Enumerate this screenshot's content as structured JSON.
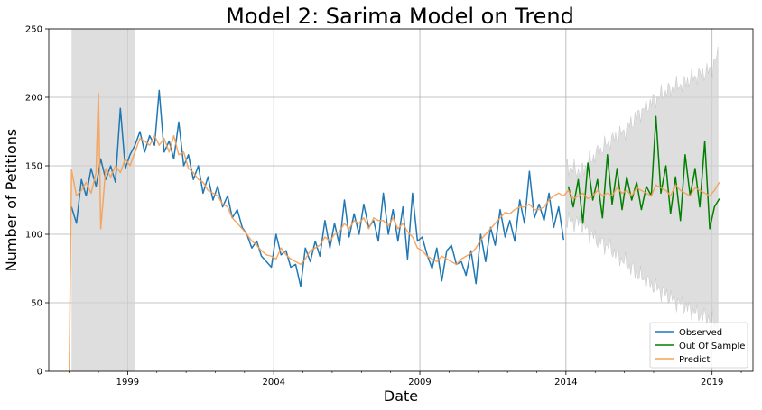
{
  "chart_data": {
    "type": "line",
    "title": "Model 2: Sarima Model on Trend",
    "xlabel": "Date",
    "ylabel": "Number of Petitions",
    "xlim": [
      1996.3,
      2020.4
    ],
    "ylim": [
      0,
      250
    ],
    "x_ticks": [
      1999,
      2004,
      2009,
      2014,
      2019
    ],
    "x_tick_labels": [
      "1999",
      "2004",
      "2009",
      "2014",
      "2019"
    ],
    "y_ticks": [
      0,
      50,
      100,
      150,
      200,
      250
    ],
    "y_tick_labels": [
      "0",
      "50",
      "100",
      "150",
      "200",
      "250"
    ],
    "grid": true,
    "legend_position": "lower-right",
    "colors": {
      "observed": "#1f77b4",
      "out_of_sample": "#008000",
      "predict": "#f5a055",
      "band": "#d3d3d3",
      "grid": "#b0b0b0"
    },
    "legend": [
      "Observed",
      "Out Of Sample",
      "Predict"
    ],
    "early_ci_band": {
      "x_start": 1997.08,
      "x_end": 1999.25,
      "y_low": 0,
      "y_high": 250
    },
    "forecast_ci": {
      "x": [
        2014.0,
        2014.5,
        2015.0,
        2015.5,
        2016.0,
        2016.5,
        2017.0,
        2017.5,
        2018.0,
        2018.5,
        2019.0,
        2019.2
      ],
      "upper": [
        150,
        145,
        158,
        168,
        175,
        188,
        198,
        205,
        210,
        216,
        220,
        232
      ],
      "lower": [
        110,
        108,
        97,
        90,
        80,
        70,
        62,
        55,
        48,
        42,
        38,
        30
      ]
    },
    "series": [
      {
        "name": "Observed",
        "x": [
          1997.08,
          1997.25,
          1997.42,
          1997.58,
          1997.75,
          1997.92,
          1998.08,
          1998.25,
          1998.42,
          1998.58,
          1998.75,
          1998.92,
          1999.08,
          1999.25,
          1999.42,
          1999.58,
          1999.75,
          1999.92,
          2000.08,
          2000.25,
          2000.42,
          2000.58,
          2000.75,
          2000.92,
          2001.08,
          2001.25,
          2001.42,
          2001.58,
          2001.75,
          2001.92,
          2002.08,
          2002.25,
          2002.42,
          2002.58,
          2002.75,
          2002.92,
          2003.08,
          2003.25,
          2003.42,
          2003.58,
          2003.75,
          2003.92,
          2004.08,
          2004.25,
          2004.42,
          2004.58,
          2004.75,
          2004.92,
          2005.08,
          2005.25,
          2005.42,
          2005.58,
          2005.75,
          2005.92,
          2006.08,
          2006.25,
          2006.42,
          2006.58,
          2006.75,
          2006.92,
          2007.08,
          2007.25,
          2007.42,
          2007.58,
          2007.75,
          2007.92,
          2008.08,
          2008.25,
          2008.42,
          2008.58,
          2008.75,
          2008.92,
          2009.08,
          2009.25,
          2009.42,
          2009.58,
          2009.75,
          2009.92,
          2010.08,
          2010.25,
          2010.42,
          2010.58,
          2010.75,
          2010.92,
          2011.08,
          2011.25,
          2011.42,
          2011.58,
          2011.75,
          2011.92,
          2012.08,
          2012.25,
          2012.42,
          2012.58,
          2012.75,
          2012.92,
          2013.08,
          2013.25,
          2013.42,
          2013.58,
          2013.75,
          2013.92
        ],
        "values": [
          120,
          108,
          140,
          128,
          148,
          135,
          155,
          140,
          150,
          138,
          192,
          148,
          158,
          165,
          175,
          160,
          172,
          165,
          205,
          160,
          168,
          155,
          182,
          150,
          158,
          140,
          150,
          130,
          142,
          125,
          135,
          120,
          128,
          112,
          118,
          105,
          100,
          90,
          95,
          84,
          80,
          76,
          100,
          85,
          88,
          76,
          78,
          62,
          90,
          80,
          95,
          84,
          110,
          90,
          108,
          92,
          125,
          98,
          115,
          100,
          122,
          105,
          110,
          95,
          130,
          100,
          118,
          95,
          120,
          82,
          130,
          95,
          98,
          85,
          75,
          90,
          66,
          88,
          92,
          78,
          80,
          70,
          88,
          64,
          100,
          80,
          105,
          92,
          118,
          98,
          110,
          95,
          125,
          108,
          146,
          112,
          122,
          110,
          130,
          105,
          120,
          96
        ]
      },
      {
        "name": "Out Of Sample",
        "x": [
          2014.08,
          2014.25,
          2014.42,
          2014.58,
          2014.75,
          2014.92,
          2015.08,
          2015.25,
          2015.42,
          2015.58,
          2015.75,
          2015.92,
          2016.08,
          2016.25,
          2016.42,
          2016.58,
          2016.75,
          2016.92,
          2017.08,
          2017.25,
          2017.42,
          2017.58,
          2017.75,
          2017.92,
          2018.08,
          2018.25,
          2018.42,
          2018.58,
          2018.75,
          2018.92,
          2019.08,
          2019.25
        ],
        "values": [
          135,
          120,
          140,
          108,
          152,
          125,
          140,
          112,
          158,
          122,
          148,
          118,
          142,
          125,
          138,
          118,
          135,
          128,
          186,
          130,
          150,
          115,
          142,
          110,
          158,
          128,
          148,
          120,
          168,
          104,
          120,
          126
        ]
      },
      {
        "name": "Predict",
        "x": [
          1997.0,
          1997.08,
          1997.25,
          1997.42,
          1997.58,
          1997.75,
          1997.92,
          1998.0,
          1998.08,
          1998.25,
          1998.42,
          1998.58,
          1998.75,
          1998.92,
          1999.08,
          1999.25,
          1999.42,
          1999.58,
          1999.75,
          1999.92,
          2000.08,
          2000.25,
          2000.42,
          2000.58,
          2000.75,
          2000.92,
          2001.08,
          2001.25,
          2001.42,
          2001.58,
          2001.75,
          2001.92,
          2002.08,
          2002.25,
          2002.42,
          2002.58,
          2002.75,
          2002.92,
          2003.08,
          2003.25,
          2003.42,
          2003.58,
          2003.75,
          2003.92,
          2004.08,
          2004.25,
          2004.42,
          2004.58,
          2004.75,
          2004.92,
          2005.08,
          2005.25,
          2005.42,
          2005.58,
          2005.75,
          2005.92,
          2006.08,
          2006.25,
          2006.42,
          2006.58,
          2006.75,
          2006.92,
          2007.08,
          2007.25,
          2007.42,
          2007.58,
          2007.75,
          2007.92,
          2008.08,
          2008.25,
          2008.42,
          2008.58,
          2008.75,
          2008.92,
          2009.08,
          2009.25,
          2009.42,
          2009.58,
          2009.75,
          2009.92,
          2010.08,
          2010.25,
          2010.42,
          2010.58,
          2010.75,
          2010.92,
          2011.08,
          2011.25,
          2011.42,
          2011.58,
          2011.75,
          2011.92,
          2012.08,
          2012.25,
          2012.42,
          2012.58,
          2012.75,
          2012.92,
          2013.08,
          2013.25,
          2013.42,
          2013.58,
          2013.75,
          2013.92,
          2014.08,
          2014.25,
          2014.42,
          2014.58,
          2014.75,
          2014.92,
          2015.08,
          2015.25,
          2015.42,
          2015.58,
          2015.75,
          2015.92,
          2016.08,
          2016.25,
          2016.42,
          2016.58,
          2016.75,
          2016.92,
          2017.08,
          2017.25,
          2017.42,
          2017.58,
          2017.75,
          2017.92,
          2018.08,
          2018.25,
          2018.42,
          2018.58,
          2018.75,
          2018.92,
          2019.08,
          2019.25
        ],
        "values": [
          0,
          147,
          128,
          132,
          138,
          130,
          145,
          203,
          104,
          148,
          142,
          150,
          145,
          155,
          150,
          160,
          170,
          168,
          165,
          172,
          165,
          170,
          160,
          172,
          158,
          160,
          148,
          145,
          140,
          138,
          132,
          130,
          128,
          122,
          120,
          112,
          108,
          104,
          100,
          95,
          92,
          88,
          85,
          84,
          82,
          90,
          85,
          82,
          80,
          78,
          82,
          88,
          90,
          92,
          98,
          95,
          100,
          102,
          108,
          104,
          110,
          108,
          112,
          104,
          112,
          110,
          110,
          106,
          112,
          104,
          108,
          102,
          98,
          90,
          88,
          84,
          82,
          80,
          84,
          82,
          80,
          78,
          82,
          84,
          86,
          90,
          96,
          100,
          104,
          108,
          112,
          116,
          115,
          118,
          120,
          120,
          122,
          118,
          118,
          120,
          125,
          128,
          130,
          128,
          132,
          126,
          128,
          130,
          126,
          128,
          132,
          128,
          130,
          128,
          134,
          130,
          132,
          128,
          134,
          132,
          130,
          128,
          136,
          134,
          132,
          128,
          136,
          132,
          130,
          128,
          134,
          132,
          130,
          128,
          132,
          138
        ]
      }
    ]
  }
}
